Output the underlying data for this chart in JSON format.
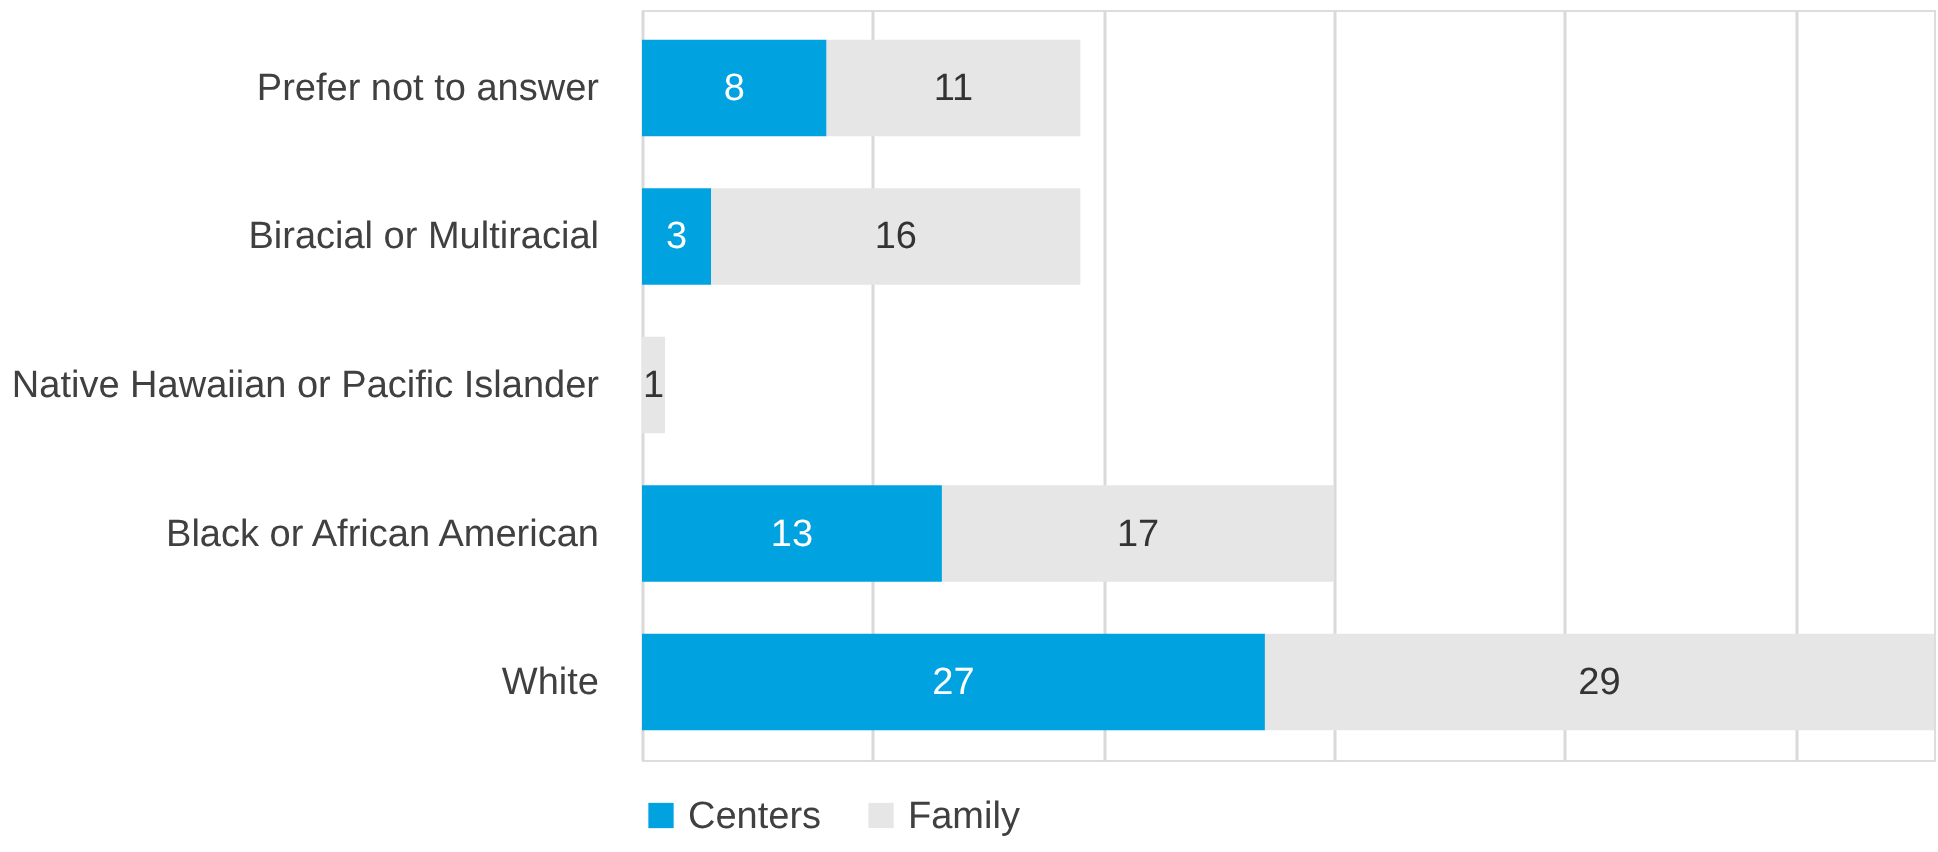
{
  "chart_data": {
    "type": "bar",
    "orientation": "horizontal",
    "stacked": true,
    "categories": [
      "Prefer not to answer",
      "Biracial or Multiracial",
      "Native Hawaiian or Pacific Islander",
      "Black or African American",
      "White"
    ],
    "series": [
      {
        "name": "Centers",
        "color": "#00a3e0",
        "values": [
          8,
          3,
          0,
          13,
          27
        ],
        "value_labels": [
          "8",
          "3",
          null,
          "13",
          "27"
        ]
      },
      {
        "name": "Family",
        "color": "#e6e6e6",
        "values": [
          11,
          16,
          1,
          17,
          29
        ],
        "value_labels": [
          "11",
          "16",
          "1",
          "17",
          "29"
        ]
      }
    ],
    "xlim": [
      0,
      56
    ],
    "xticks": [
      {
        "value": 0,
        "label": null
      },
      {
        "value": 10,
        "label": null
      },
      {
        "value": 20,
        "label": null
      },
      {
        "value": 30,
        "label": null
      },
      {
        "value": 40,
        "label": null
      },
      {
        "value": 50,
        "label": null
      }
    ],
    "tick_labels": "y",
    "grid": "x",
    "legend": "bottom"
  }
}
